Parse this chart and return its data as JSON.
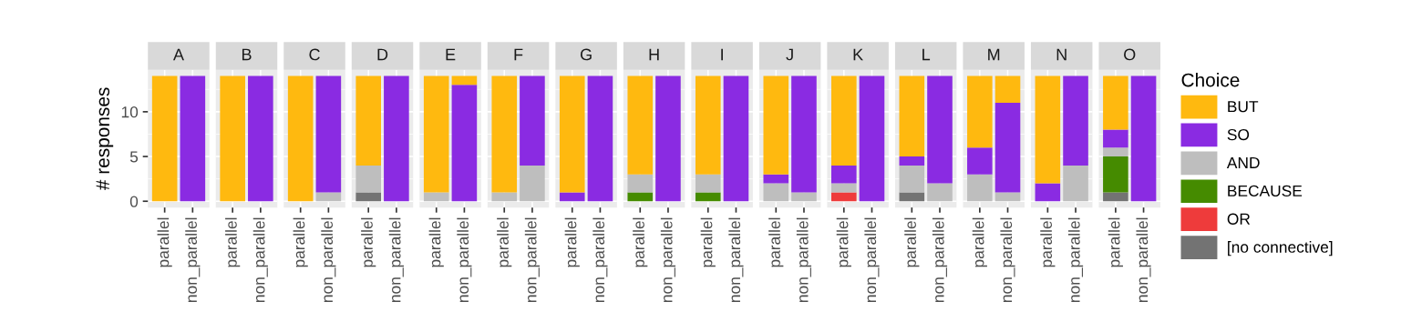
{
  "chart_data": [
    {
      "type": "bar",
      "stacked": true,
      "title": "A",
      "ylabel": "# responses",
      "legend_title": "Choice",
      "categories": [
        "parallel",
        "non_parallel"
      ],
      "ylim": [
        -0.7,
        14.7
      ],
      "yticks": [
        0,
        5,
        10
      ],
      "grid": true,
      "legend": "right",
      "series": [
        {
          "name": "[no connective]",
          "color": "#737373",
          "values": [
            0,
            0
          ]
        },
        {
          "name": "OR",
          "color": "#ee3b3b",
          "values": [
            0,
            0
          ]
        },
        {
          "name": "BECAUSE",
          "color": "#458b00",
          "values": [
            0,
            0
          ]
        },
        {
          "name": "AND",
          "color": "#bebebe",
          "values": [
            0,
            0
          ]
        },
        {
          "name": "SO",
          "color": "#8a2be2",
          "values": [
            0,
            14
          ]
        },
        {
          "name": "BUT",
          "color": "#ffb90f",
          "values": [
            14,
            0
          ]
        }
      ]
    },
    {
      "type": "bar",
      "stacked": true,
      "title": "B",
      "categories": [
        "parallel",
        "non_parallel"
      ],
      "ylim": [
        -0.7,
        14.7
      ],
      "yticks": [
        0,
        5,
        10
      ],
      "grid": true,
      "tick_labels": "x",
      "series": [
        {
          "color": "#737373",
          "values": [
            0,
            0
          ]
        },
        {
          "color": "#ee3b3b",
          "values": [
            0,
            0
          ]
        },
        {
          "color": "#458b00",
          "values": [
            0,
            0
          ]
        },
        {
          "color": "#bebebe",
          "values": [
            0,
            0
          ]
        },
        {
          "color": "#8a2be2",
          "values": [
            0,
            14
          ]
        },
        {
          "color": "#ffb90f",
          "values": [
            14,
            0
          ]
        }
      ]
    },
    {
      "type": "bar",
      "stacked": true,
      "title": "C",
      "categories": [
        "parallel",
        "non_parallel"
      ],
      "ylim": [
        -0.7,
        14.7
      ],
      "yticks": [
        0,
        5,
        10
      ],
      "grid": true,
      "tick_labels": "x",
      "series": [
        {
          "color": "#737373",
          "values": [
            0,
            0
          ]
        },
        {
          "color": "#ee3b3b",
          "values": [
            0,
            0
          ]
        },
        {
          "color": "#458b00",
          "values": [
            0,
            0
          ]
        },
        {
          "color": "#bebebe",
          "values": [
            0,
            1
          ]
        },
        {
          "color": "#8a2be2",
          "values": [
            0,
            13
          ]
        },
        {
          "color": "#ffb90f",
          "values": [
            14,
            0
          ]
        }
      ]
    },
    {
      "type": "bar",
      "stacked": true,
      "title": "D",
      "categories": [
        "parallel",
        "non_parallel"
      ],
      "ylim": [
        -0.7,
        14.7
      ],
      "yticks": [
        0,
        5,
        10
      ],
      "grid": true,
      "tick_labels": "x",
      "series": [
        {
          "color": "#737373",
          "values": [
            1,
            0
          ]
        },
        {
          "color": "#ee3b3b",
          "values": [
            0,
            0
          ]
        },
        {
          "color": "#458b00",
          "values": [
            0,
            0
          ]
        },
        {
          "color": "#bebebe",
          "values": [
            3,
            0
          ]
        },
        {
          "color": "#8a2be2",
          "values": [
            0,
            14
          ]
        },
        {
          "color": "#ffb90f",
          "values": [
            10,
            0
          ]
        }
      ]
    },
    {
      "type": "bar",
      "stacked": true,
      "title": "E",
      "categories": [
        "parallel",
        "non_parallel"
      ],
      "ylim": [
        -0.7,
        14.7
      ],
      "yticks": [
        0,
        5,
        10
      ],
      "grid": true,
      "tick_labels": "x",
      "series": [
        {
          "color": "#737373",
          "values": [
            0,
            0
          ]
        },
        {
          "color": "#ee3b3b",
          "values": [
            0,
            0
          ]
        },
        {
          "color": "#458b00",
          "values": [
            0,
            0
          ]
        },
        {
          "color": "#bebebe",
          "values": [
            1,
            0
          ]
        },
        {
          "color": "#8a2be2",
          "values": [
            0,
            13
          ]
        },
        {
          "color": "#ffb90f",
          "values": [
            13,
            1
          ]
        }
      ]
    },
    {
      "type": "bar",
      "stacked": true,
      "title": "F",
      "categories": [
        "parallel",
        "non_parallel"
      ],
      "ylim": [
        -0.7,
        14.7
      ],
      "yticks": [
        0,
        5,
        10
      ],
      "grid": true,
      "tick_labels": "x",
      "series": [
        {
          "color": "#737373",
          "values": [
            0,
            0
          ]
        },
        {
          "color": "#ee3b3b",
          "values": [
            0,
            0
          ]
        },
        {
          "color": "#458b00",
          "values": [
            0,
            0
          ]
        },
        {
          "color": "#bebebe",
          "values": [
            1,
            4
          ]
        },
        {
          "color": "#8a2be2",
          "values": [
            0,
            10
          ]
        },
        {
          "color": "#ffb90f",
          "values": [
            13,
            0
          ]
        }
      ]
    },
    {
      "type": "bar",
      "stacked": true,
      "title": "G",
      "categories": [
        "parallel",
        "non_parallel"
      ],
      "ylim": [
        -0.7,
        14.7
      ],
      "yticks": [
        0,
        5,
        10
      ],
      "grid": true,
      "tick_labels": "x",
      "series": [
        {
          "color": "#737373",
          "values": [
            0,
            0
          ]
        },
        {
          "color": "#ee3b3b",
          "values": [
            0,
            0
          ]
        },
        {
          "color": "#458b00",
          "values": [
            0,
            0
          ]
        },
        {
          "color": "#bebebe",
          "values": [
            0,
            0
          ]
        },
        {
          "color": "#8a2be2",
          "values": [
            1,
            14
          ]
        },
        {
          "color": "#ffb90f",
          "values": [
            13,
            0
          ]
        }
      ]
    },
    {
      "type": "bar",
      "stacked": true,
      "title": "H",
      "categories": [
        "parallel",
        "non_parallel"
      ],
      "ylim": [
        -0.7,
        14.7
      ],
      "yticks": [
        0,
        5,
        10
      ],
      "grid": true,
      "tick_labels": "x",
      "series": [
        {
          "color": "#737373",
          "values": [
            0,
            0
          ]
        },
        {
          "color": "#ee3b3b",
          "values": [
            0,
            0
          ]
        },
        {
          "color": "#458b00",
          "values": [
            1,
            0
          ]
        },
        {
          "color": "#bebebe",
          "values": [
            2,
            0
          ]
        },
        {
          "color": "#8a2be2",
          "values": [
            0,
            14
          ]
        },
        {
          "color": "#ffb90f",
          "values": [
            11,
            0
          ]
        }
      ]
    },
    {
      "type": "bar",
      "stacked": true,
      "title": "I",
      "categories": [
        "parallel",
        "non_parallel"
      ],
      "ylim": [
        -0.7,
        14.7
      ],
      "yticks": [
        0,
        5,
        10
      ],
      "grid": true,
      "tick_labels": "x",
      "series": [
        {
          "color": "#737373",
          "values": [
            0,
            0
          ]
        },
        {
          "color": "#ee3b3b",
          "values": [
            0,
            0
          ]
        },
        {
          "color": "#458b00",
          "values": [
            1,
            0
          ]
        },
        {
          "color": "#bebebe",
          "values": [
            2,
            0
          ]
        },
        {
          "color": "#8a2be2",
          "values": [
            0,
            14
          ]
        },
        {
          "color": "#ffb90f",
          "values": [
            11,
            0
          ]
        }
      ]
    },
    {
      "type": "bar",
      "stacked": true,
      "title": "J",
      "categories": [
        "parallel",
        "non_parallel"
      ],
      "ylim": [
        -0.7,
        14.7
      ],
      "yticks": [
        0,
        5,
        10
      ],
      "grid": true,
      "tick_labels": "x",
      "series": [
        {
          "color": "#737373",
          "values": [
            0,
            0
          ]
        },
        {
          "color": "#ee3b3b",
          "values": [
            0,
            0
          ]
        },
        {
          "color": "#458b00",
          "values": [
            0,
            0
          ]
        },
        {
          "color": "#bebebe",
          "values": [
            2,
            1
          ]
        },
        {
          "color": "#8a2be2",
          "values": [
            1,
            13
          ]
        },
        {
          "color": "#ffb90f",
          "values": [
            11,
            0
          ]
        }
      ]
    },
    {
      "type": "bar",
      "stacked": true,
      "title": "K",
      "categories": [
        "parallel",
        "non_parallel"
      ],
      "ylim": [
        -0.7,
        14.7
      ],
      "yticks": [
        0,
        5,
        10
      ],
      "grid": true,
      "tick_labels": "x",
      "series": [
        {
          "color": "#737373",
          "values": [
            0,
            0
          ]
        },
        {
          "color": "#ee3b3b",
          "values": [
            1,
            0
          ]
        },
        {
          "color": "#458b00",
          "values": [
            0,
            0
          ]
        },
        {
          "color": "#bebebe",
          "values": [
            1,
            0
          ]
        },
        {
          "color": "#8a2be2",
          "values": [
            2,
            14
          ]
        },
        {
          "color": "#ffb90f",
          "values": [
            10,
            0
          ]
        }
      ]
    },
    {
      "type": "bar",
      "stacked": true,
      "title": "L",
      "categories": [
        "parallel",
        "non_parallel"
      ],
      "ylim": [
        -0.7,
        14.7
      ],
      "yticks": [
        0,
        5,
        10
      ],
      "grid": true,
      "tick_labels": "x",
      "series": [
        {
          "color": "#737373",
          "values": [
            1,
            0
          ]
        },
        {
          "color": "#ee3b3b",
          "values": [
            0,
            0
          ]
        },
        {
          "color": "#458b00",
          "values": [
            0,
            0
          ]
        },
        {
          "color": "#bebebe",
          "values": [
            3,
            2
          ]
        },
        {
          "color": "#8a2be2",
          "values": [
            1,
            12
          ]
        },
        {
          "color": "#ffb90f",
          "values": [
            9,
            0
          ]
        }
      ]
    },
    {
      "type": "bar",
      "stacked": true,
      "title": "M",
      "categories": [
        "parallel",
        "non_parallel"
      ],
      "ylim": [
        -0.7,
        14.7
      ],
      "yticks": [
        0,
        5,
        10
      ],
      "grid": true,
      "tick_labels": "x",
      "series": [
        {
          "color": "#737373",
          "values": [
            0,
            0
          ]
        },
        {
          "color": "#ee3b3b",
          "values": [
            0,
            0
          ]
        },
        {
          "color": "#458b00",
          "values": [
            0,
            0
          ]
        },
        {
          "color": "#bebebe",
          "values": [
            3,
            1
          ]
        },
        {
          "color": "#8a2be2",
          "values": [
            3,
            10
          ]
        },
        {
          "color": "#ffb90f",
          "values": [
            8,
            3
          ]
        }
      ]
    },
    {
      "type": "bar",
      "stacked": true,
      "title": "N",
      "categories": [
        "parallel",
        "non_parallel"
      ],
      "ylim": [
        -0.7,
        14.7
      ],
      "yticks": [
        0,
        5,
        10
      ],
      "grid": true,
      "tick_labels": "x",
      "series": [
        {
          "color": "#737373",
          "values": [
            0,
            0
          ]
        },
        {
          "color": "#ee3b3b",
          "values": [
            0,
            0
          ]
        },
        {
          "color": "#458b00",
          "values": [
            0,
            0
          ]
        },
        {
          "color": "#bebebe",
          "values": [
            0,
            4
          ]
        },
        {
          "color": "#8a2be2",
          "values": [
            2,
            10
          ]
        },
        {
          "color": "#ffb90f",
          "values": [
            12,
            0
          ]
        }
      ]
    },
    {
      "type": "bar",
      "stacked": true,
      "title": "O",
      "categories": [
        "parallel",
        "non_parallel"
      ],
      "ylim": [
        -0.7,
        14.7
      ],
      "yticks": [
        0,
        5,
        10
      ],
      "grid": true,
      "tick_labels": "x",
      "series": [
        {
          "color": "#737373",
          "values": [
            1,
            0
          ]
        },
        {
          "color": "#ee3b3b",
          "values": [
            0,
            0
          ]
        },
        {
          "color": "#458b00",
          "values": [
            4,
            0
          ]
        },
        {
          "color": "#bebebe",
          "values": [
            1,
            0
          ]
        },
        {
          "color": "#8a2be2",
          "values": [
            2,
            14
          ]
        },
        {
          "color": "#ffb90f",
          "values": [
            6,
            0
          ]
        }
      ]
    }
  ]
}
